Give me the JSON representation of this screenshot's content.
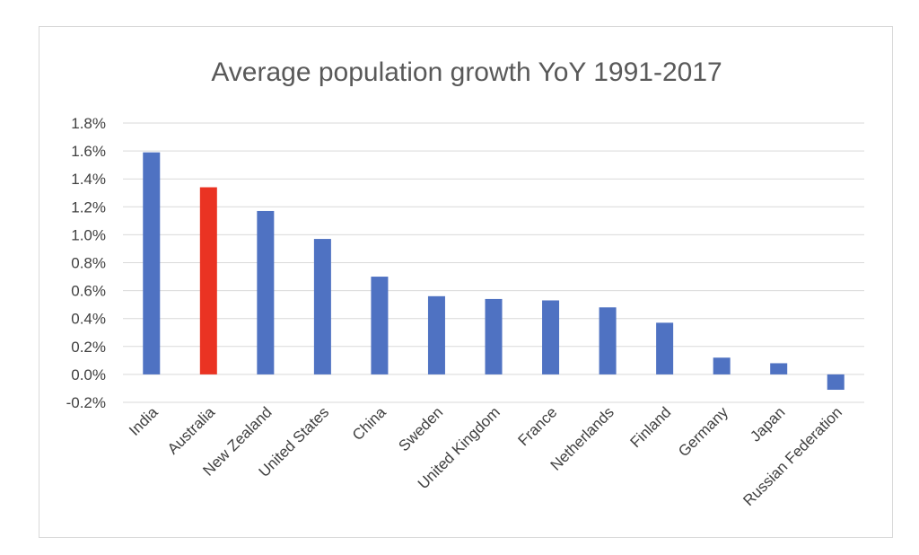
{
  "chart_data": {
    "type": "bar",
    "title": "Average population growth YoY 1991-2017",
    "xlabel": "",
    "ylabel": "",
    "ylim": [
      -0.2,
      1.8
    ],
    "y_ticks": [
      "1.8%",
      "1.6%",
      "1.4%",
      "1.2%",
      "1.0%",
      "0.8%",
      "0.6%",
      "0.4%",
      "0.2%",
      "0.0%",
      "-0.2%"
    ],
    "y_tick_values": [
      1.8,
      1.6,
      1.4,
      1.2,
      1.0,
      0.8,
      0.6,
      0.4,
      0.2,
      0.0,
      -0.2
    ],
    "grid": true,
    "legend": "none",
    "categories": [
      "India",
      "Australia",
      "New Zealand",
      "United States",
      "China",
      "Sweden",
      "United Kingdom",
      "France",
      "Netherlands",
      "Finland",
      "Germany",
      "Japan",
      "Russian Federation"
    ],
    "values": [
      1.59,
      1.34,
      1.17,
      0.97,
      0.7,
      0.56,
      0.54,
      0.53,
      0.48,
      0.37,
      0.12,
      0.08,
      -0.11
    ],
    "colors": {
      "default": "#4f72c2",
      "highlight": "#ea3323",
      "highlight_category": "Australia"
    }
  }
}
